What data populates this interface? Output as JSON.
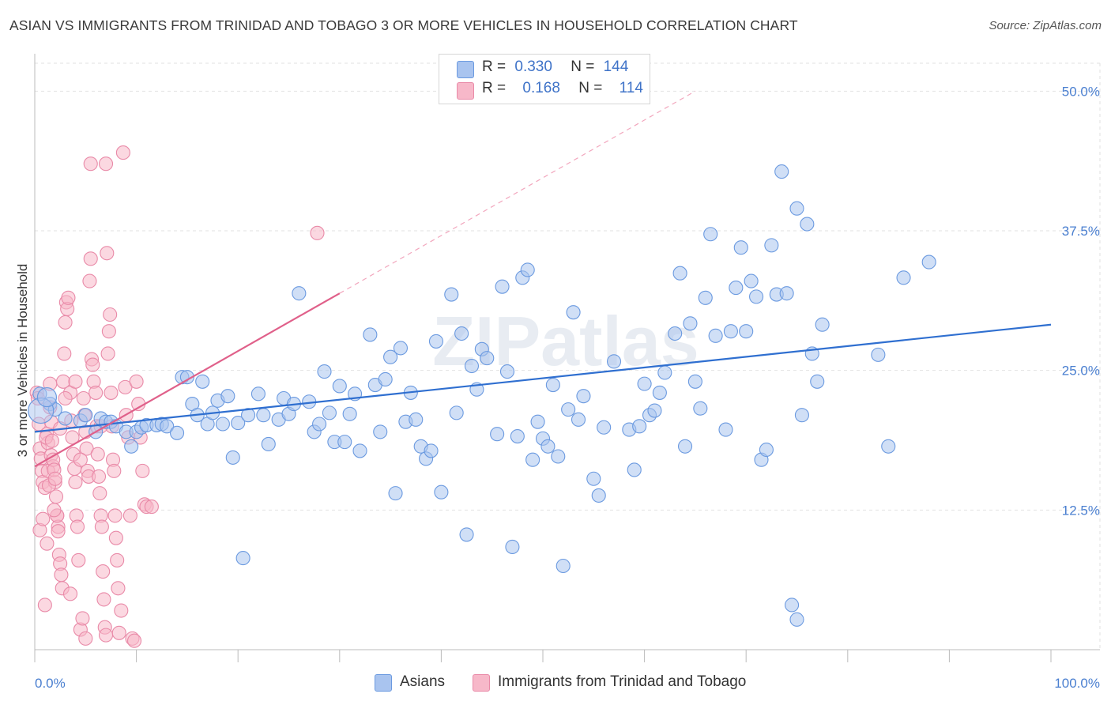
{
  "title": "ASIAN VS IMMIGRANTS FROM TRINIDAD AND TOBAGO 3 OR MORE VEHICLES IN HOUSEHOLD CORRELATION CHART",
  "source": "Source: ZipAtlas.com",
  "watermark": "ZIPatlas",
  "legend": {
    "r_label": "R =",
    "n_label": "N =",
    "rows": [
      {
        "r": "0.330",
        "n": "144",
        "color": "#a9c4ef",
        "border": "#6b9ae0"
      },
      {
        "r": "0.168",
        "n": "114",
        "color": "#f7b8c9",
        "border": "#e98aa8"
      }
    ]
  },
  "bottom_legend": [
    {
      "label": "Asians",
      "color": "#a9c4ef",
      "border": "#6b9ae0"
    },
    {
      "label": "Immigrants from Trinidad and Tobago",
      "color": "#f7b8c9",
      "border": "#e98aa8"
    }
  ],
  "chart_data": {
    "type": "scatter",
    "title": "ASIAN VS IMMIGRANTS FROM TRINIDAD AND TOBAGO 3 OR MORE VEHICLES IN HOUSEHOLD CORRELATION CHART",
    "xlabel": "",
    "ylabel": "3 or more Vehicles in Household",
    "xlim": [
      0,
      100
    ],
    "ylim": [
      0,
      52.5
    ],
    "x_tick_labels": [
      "0.0%",
      "100.0%"
    ],
    "y_ticks": [
      12.5,
      25.0,
      37.5,
      50.0
    ],
    "y_tick_labels": [
      "12.5%",
      "25.0%",
      "37.5%",
      "50.0%"
    ],
    "grid": true,
    "legend_position": "top-center",
    "series": [
      {
        "name": "Asians",
        "color": "#6b9ae0",
        "fill": "#a9c4ef",
        "trend": {
          "x": [
            0,
            100
          ],
          "y": [
            19.5,
            29.1
          ],
          "color": "#2f6fd0"
        },
        "points": [
          [
            0.5,
            22.9
          ],
          [
            1.5,
            22.0
          ],
          [
            2.0,
            21.5
          ],
          [
            3.0,
            20.7
          ],
          [
            4.5,
            20.5
          ],
          [
            5.0,
            21.0
          ],
          [
            6.0,
            19.5
          ],
          [
            6.5,
            20.7
          ],
          [
            7.0,
            20.4
          ],
          [
            7.5,
            20.4
          ],
          [
            8.0,
            20.0
          ],
          [
            9.0,
            19.5
          ],
          [
            9.5,
            18.2
          ],
          [
            10.0,
            19.5
          ],
          [
            10.5,
            19.9
          ],
          [
            11.0,
            20.1
          ],
          [
            12.0,
            20.1
          ],
          [
            12.5,
            20.2
          ],
          [
            13.0,
            20.0
          ],
          [
            14.0,
            19.4
          ],
          [
            14.5,
            24.4
          ],
          [
            15.0,
            24.4
          ],
          [
            15.5,
            22.0
          ],
          [
            16.0,
            21.0
          ],
          [
            16.5,
            24.0
          ],
          [
            17.0,
            20.2
          ],
          [
            17.5,
            21.2
          ],
          [
            18.0,
            22.3
          ],
          [
            18.5,
            20.2
          ],
          [
            19.0,
            22.7
          ],
          [
            19.5,
            17.2
          ],
          [
            20.0,
            20.3
          ],
          [
            20.5,
            8.2
          ],
          [
            21.0,
            21.0
          ],
          [
            22.0,
            22.9
          ],
          [
            22.5,
            21.0
          ],
          [
            23.0,
            18.4
          ],
          [
            24.0,
            20.6
          ],
          [
            24.5,
            22.5
          ],
          [
            25.0,
            21.1
          ],
          [
            25.5,
            22.0
          ],
          [
            26.0,
            31.9
          ],
          [
            27.0,
            22.2
          ],
          [
            27.5,
            19.5
          ],
          [
            28.0,
            20.2
          ],
          [
            28.5,
            24.9
          ],
          [
            29.0,
            21.2
          ],
          [
            29.5,
            18.6
          ],
          [
            30.0,
            23.6
          ],
          [
            30.5,
            18.6
          ],
          [
            31.0,
            21.1
          ],
          [
            31.5,
            22.9
          ],
          [
            32.0,
            17.8
          ],
          [
            33.0,
            28.2
          ],
          [
            33.5,
            23.7
          ],
          [
            34.0,
            19.5
          ],
          [
            34.5,
            24.2
          ],
          [
            35.0,
            26.2
          ],
          [
            35.5,
            14.0
          ],
          [
            36.0,
            27.0
          ],
          [
            36.5,
            20.4
          ],
          [
            37.0,
            23.0
          ],
          [
            37.5,
            20.6
          ],
          [
            38.0,
            18.2
          ],
          [
            38.5,
            17.1
          ],
          [
            39.0,
            17.8
          ],
          [
            39.5,
            27.6
          ],
          [
            40.0,
            14.1
          ],
          [
            41.0,
            31.8
          ],
          [
            41.5,
            21.2
          ],
          [
            42.0,
            28.3
          ],
          [
            42.5,
            10.3
          ],
          [
            43.0,
            25.4
          ],
          [
            43.5,
            23.3
          ],
          [
            44.0,
            26.9
          ],
          [
            44.5,
            26.1
          ],
          [
            45.5,
            19.3
          ],
          [
            46.0,
            32.5
          ],
          [
            46.5,
            24.9
          ],
          [
            47.0,
            9.2
          ],
          [
            47.5,
            19.1
          ],
          [
            48.0,
            33.3
          ],
          [
            48.5,
            34.0
          ],
          [
            49.0,
            17.0
          ],
          [
            49.5,
            20.4
          ],
          [
            50.0,
            18.9
          ],
          [
            50.5,
            18.2
          ],
          [
            51.0,
            23.7
          ],
          [
            51.5,
            17.3
          ],
          [
            52.0,
            7.5
          ],
          [
            52.5,
            21.5
          ],
          [
            53.0,
            30.2
          ],
          [
            53.5,
            20.6
          ],
          [
            54.0,
            22.7
          ],
          [
            55.0,
            15.3
          ],
          [
            55.5,
            13.8
          ],
          [
            56.0,
            19.9
          ],
          [
            57.0,
            25.8
          ],
          [
            58.5,
            19.7
          ],
          [
            59.0,
            16.1
          ],
          [
            59.5,
            20.0
          ],
          [
            60.0,
            23.8
          ],
          [
            60.5,
            21.0
          ],
          [
            61.0,
            21.4
          ],
          [
            61.5,
            23.0
          ],
          [
            62.0,
            24.8
          ],
          [
            63.0,
            28.3
          ],
          [
            63.5,
            33.7
          ],
          [
            64.0,
            18.2
          ],
          [
            64.5,
            29.2
          ],
          [
            65.0,
            24.0
          ],
          [
            65.5,
            21.6
          ],
          [
            66.0,
            31.5
          ],
          [
            66.5,
            37.2
          ],
          [
            67.0,
            28.1
          ],
          [
            68.0,
            19.7
          ],
          [
            68.5,
            28.5
          ],
          [
            69.0,
            32.4
          ],
          [
            69.5,
            36.0
          ],
          [
            70.0,
            28.5
          ],
          [
            70.5,
            33.0
          ],
          [
            71.0,
            31.6
          ],
          [
            71.5,
            17.0
          ],
          [
            72.0,
            17.9
          ],
          [
            72.5,
            36.2
          ],
          [
            73.0,
            31.8
          ],
          [
            74.0,
            31.9
          ],
          [
            75.0,
            39.5
          ],
          [
            75.5,
            21.0
          ],
          [
            76.0,
            38.1
          ],
          [
            76.5,
            26.5
          ],
          [
            77.0,
            24.0
          ],
          [
            77.5,
            29.1
          ],
          [
            83.0,
            26.4
          ],
          [
            84.0,
            18.2
          ],
          [
            85.5,
            33.3
          ],
          [
            74.5,
            4.0
          ],
          [
            75.0,
            2.7
          ],
          [
            88.0,
            34.7
          ],
          [
            73.5,
            42.8
          ]
        ]
      },
      {
        "name": "Immigrants from Trinidad and Tobago",
        "color": "#e98aa8",
        "fill": "#f7b8c9",
        "trend": {
          "x": [
            0,
            30
          ],
          "y": [
            16.4,
            31.9
          ],
          "color": "#e0608a",
          "extended_to": [
            65,
            50
          ]
        },
        "points": [
          [
            0.2,
            23.0
          ],
          [
            0.3,
            22.5
          ],
          [
            0.4,
            20.2
          ],
          [
            0.5,
            18.0
          ],
          [
            0.6,
            17.1
          ],
          [
            0.7,
            16.0
          ],
          [
            0.8,
            15.0
          ],
          [
            1.0,
            14.5
          ],
          [
            1.2,
            19.3
          ],
          [
            1.3,
            18.5
          ],
          [
            1.5,
            21.7
          ],
          [
            1.6,
            17.4
          ],
          [
            1.8,
            16.4
          ],
          [
            2.0,
            15.0
          ],
          [
            2.2,
            12.0
          ],
          [
            2.3,
            11.0
          ],
          [
            0.5,
            10.7
          ],
          [
            0.8,
            11.7
          ],
          [
            1.0,
            4.0
          ],
          [
            1.1,
            19.0
          ],
          [
            1.3,
            16.0
          ],
          [
            1.4,
            14.7
          ],
          [
            1.5,
            23.8
          ],
          [
            1.6,
            20.4
          ],
          [
            1.7,
            18.7
          ],
          [
            1.8,
            17.0
          ],
          [
            1.9,
            16.1
          ],
          [
            2.0,
            15.3
          ],
          [
            2.1,
            13.7
          ],
          [
            2.2,
            12.0
          ],
          [
            2.3,
            10.6
          ],
          [
            2.4,
            8.5
          ],
          [
            2.5,
            7.7
          ],
          [
            2.6,
            6.7
          ],
          [
            2.7,
            5.5
          ],
          [
            2.8,
            24.0
          ],
          [
            2.9,
            26.5
          ],
          [
            3.0,
            29.3
          ],
          [
            3.1,
            31.1
          ],
          [
            3.2,
            30.5
          ],
          [
            3.3,
            31.5
          ],
          [
            3.5,
            23.0
          ],
          [
            3.6,
            20.5
          ],
          [
            3.7,
            19.0
          ],
          [
            3.8,
            17.5
          ],
          [
            3.9,
            16.2
          ],
          [
            4.0,
            15.0
          ],
          [
            4.1,
            12.0
          ],
          [
            4.2,
            11.0
          ],
          [
            4.3,
            8.0
          ],
          [
            4.5,
            1.8
          ],
          [
            4.7,
            2.8
          ],
          [
            4.8,
            22.5
          ],
          [
            4.9,
            21.0
          ],
          [
            5.0,
            19.5
          ],
          [
            5.1,
            18.0
          ],
          [
            5.2,
            16.0
          ],
          [
            5.3,
            15.5
          ],
          [
            5.4,
            33.0
          ],
          [
            5.5,
            35.0
          ],
          [
            5.6,
            26.0
          ],
          [
            5.7,
            25.5
          ],
          [
            5.8,
            24.0
          ],
          [
            6.0,
            23.0
          ],
          [
            6.1,
            20.0
          ],
          [
            6.2,
            17.5
          ],
          [
            6.3,
            15.5
          ],
          [
            6.4,
            14.0
          ],
          [
            6.5,
            12.0
          ],
          [
            6.6,
            11.0
          ],
          [
            6.7,
            7.0
          ],
          [
            6.8,
            4.5
          ],
          [
            6.9,
            2.0
          ],
          [
            7.0,
            1.3
          ],
          [
            7.1,
            35.5
          ],
          [
            7.2,
            26.5
          ],
          [
            7.3,
            28.5
          ],
          [
            7.4,
            30.0
          ],
          [
            7.5,
            23.0
          ],
          [
            7.6,
            20.0
          ],
          [
            7.7,
            17.0
          ],
          [
            7.8,
            16.0
          ],
          [
            7.9,
            12.0
          ],
          [
            8.0,
            10.0
          ],
          [
            8.1,
            8.0
          ],
          [
            8.2,
            5.5
          ],
          [
            8.3,
            1.5
          ],
          [
            8.5,
            3.5
          ],
          [
            8.7,
            44.5
          ],
          [
            8.9,
            23.5
          ],
          [
            9.0,
            21.0
          ],
          [
            9.2,
            19.0
          ],
          [
            9.4,
            12.0
          ],
          [
            9.6,
            1.0
          ],
          [
            9.8,
            0.8
          ],
          [
            10.0,
            24.0
          ],
          [
            10.2,
            22.0
          ],
          [
            10.4,
            19.0
          ],
          [
            10.6,
            16.0
          ],
          [
            10.8,
            13.0
          ],
          [
            11.0,
            12.8
          ],
          [
            7.0,
            43.5
          ],
          [
            5.5,
            43.5
          ],
          [
            4.0,
            24.0
          ],
          [
            3.0,
            22.5
          ],
          [
            2.5,
            19.8
          ],
          [
            1.9,
            12.5
          ],
          [
            5.0,
            1.0
          ],
          [
            27.8,
            37.3
          ],
          [
            11.5,
            12.8
          ],
          [
            1.2,
            9.5
          ],
          [
            3.5,
            5.0
          ],
          [
            6.5,
            20.0
          ],
          [
            4.5,
            17.0
          ]
        ]
      }
    ]
  }
}
